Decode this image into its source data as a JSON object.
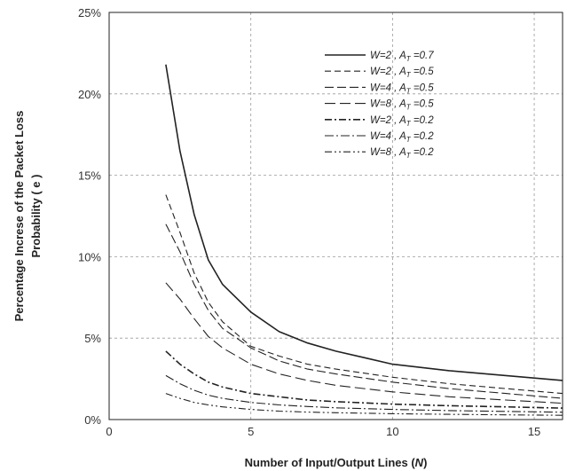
{
  "chart_data": {
    "type": "line",
    "xlabel": "Number of Input/Output Lines (N)",
    "ylabel_line1": "Percentage Increse of the Packet Loss",
    "ylabel_line2": "Probability ( e )",
    "xlim": [
      0,
      16
    ],
    "ylim": [
      0,
      25
    ],
    "x_ticks": [
      0,
      5,
      10,
      15
    ],
    "y_ticks": [
      0,
      5,
      10,
      15,
      20,
      25
    ],
    "y_tick_suffix": "%",
    "grid": true,
    "legend_position": "top-right",
    "series": [
      {
        "name": "W=2 ,  AT =0.7",
        "w": "W=2",
        "a": "0.7",
        "dash": "",
        "width": 1.6,
        "x": [
          2,
          2.5,
          3,
          3.5,
          4,
          5,
          6,
          7,
          8,
          9,
          10,
          12,
          14,
          16
        ],
        "y": [
          21.8,
          16.5,
          12.6,
          9.8,
          8.3,
          6.6,
          5.4,
          4.7,
          4.2,
          3.8,
          3.4,
          3.0,
          2.7,
          2.4
        ]
      },
      {
        "name": "W=2 ,  AT =0.5",
        "w": "W=2",
        "a": "0.5",
        "dash": "7 4",
        "width": 1.1,
        "x": [
          2,
          2.5,
          3,
          3.5,
          4,
          5,
          6,
          7,
          8,
          10,
          12,
          14,
          16
        ],
        "y": [
          13.8,
          11.5,
          9.0,
          7.2,
          6.0,
          4.5,
          3.9,
          3.4,
          3.1,
          2.6,
          2.2,
          1.9,
          1.6
        ]
      },
      {
        "name": "W=4 ,  AT =0.5",
        "w": "W=4",
        "a": "0.5",
        "dash": "10 4",
        "width": 1.1,
        "x": [
          2,
          2.5,
          3,
          3.5,
          4,
          5,
          6,
          7,
          8,
          10,
          12,
          14,
          16
        ],
        "y": [
          12.0,
          10.3,
          8.3,
          6.7,
          5.6,
          4.4,
          3.6,
          3.1,
          2.8,
          2.3,
          1.9,
          1.6,
          1.3
        ]
      },
      {
        "name": "W=8 ,  AT =0.5",
        "w": "W=8",
        "a": "0.5",
        "dash": "12 5",
        "width": 1.1,
        "x": [
          2,
          2.5,
          3,
          3.5,
          4,
          5,
          6,
          7,
          8,
          10,
          12,
          14,
          16
        ],
        "y": [
          8.4,
          7.4,
          6.2,
          5.1,
          4.4,
          3.4,
          2.8,
          2.4,
          2.1,
          1.7,
          1.4,
          1.2,
          1.0
        ]
      },
      {
        "name": "W=2 ,  AT =0.2",
        "w": "W=2",
        "a": "0.2",
        "dash": "8 3 2 3",
        "width": 1.6,
        "x": [
          2,
          2.5,
          3,
          3.5,
          4,
          5,
          6,
          7,
          8,
          10,
          12,
          14,
          16
        ],
        "y": [
          4.2,
          3.4,
          2.8,
          2.3,
          2.0,
          1.6,
          1.4,
          1.2,
          1.1,
          0.95,
          0.85,
          0.78,
          0.7
        ]
      },
      {
        "name": "W=4 ,  AT =0.2",
        "w": "W=4",
        "a": "0.2",
        "dash": "10 3 2 3",
        "width": 1.1,
        "x": [
          2,
          2.5,
          3,
          3.5,
          4,
          5,
          6,
          7,
          8,
          10,
          12,
          14,
          16
        ],
        "y": [
          2.7,
          2.2,
          1.8,
          1.5,
          1.3,
          1.05,
          0.9,
          0.8,
          0.72,
          0.62,
          0.55,
          0.5,
          0.45
        ]
      },
      {
        "name": "W=8 ,  AT =0.2",
        "w": "W=8",
        "a": "0.2",
        "dash": "8 3 2 3 2 3",
        "width": 1.1,
        "x": [
          2,
          2.5,
          3,
          3.5,
          4,
          5,
          6,
          7,
          8,
          10,
          12,
          14,
          16
        ],
        "y": [
          1.6,
          1.3,
          1.05,
          0.9,
          0.78,
          0.62,
          0.52,
          0.46,
          0.42,
          0.36,
          0.32,
          0.29,
          0.26
        ]
      }
    ]
  }
}
